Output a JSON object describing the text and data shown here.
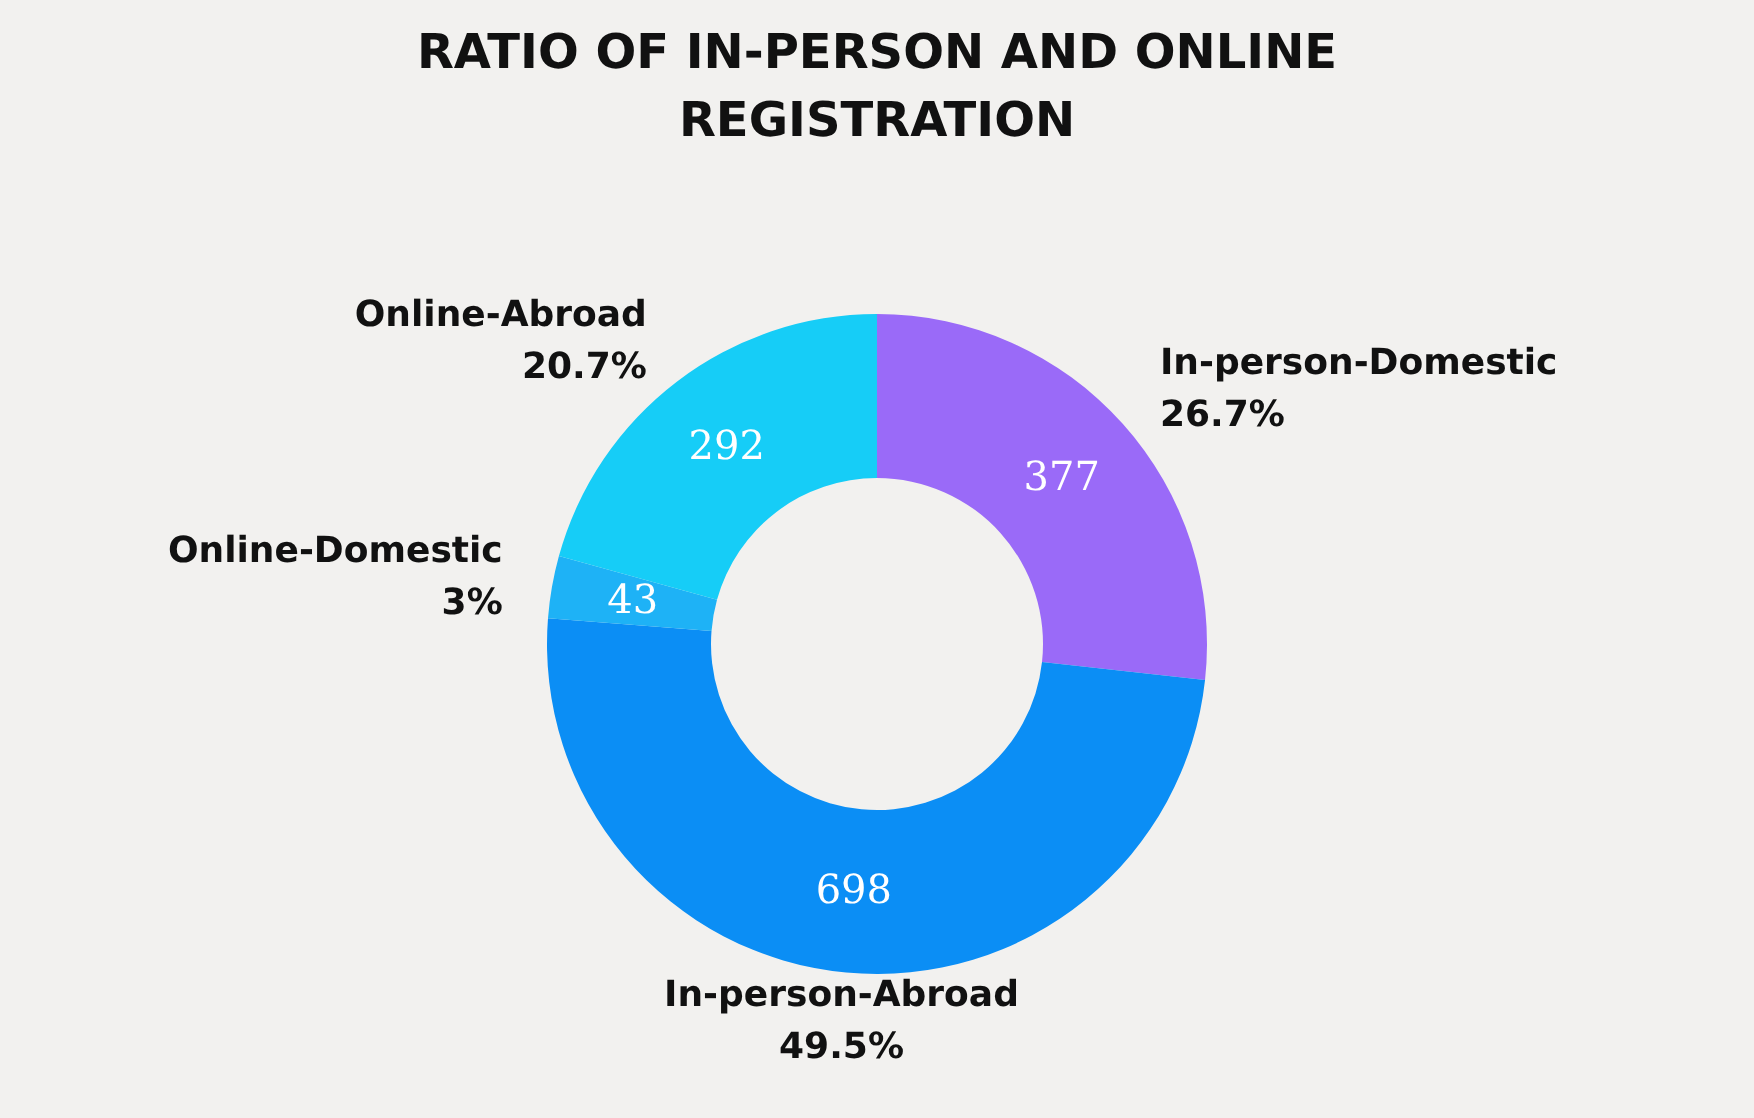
{
  "chart_data": {
    "type": "donut",
    "title": "RATIO OF IN-PERSON AND ONLINE REGISTRATION",
    "categories": [
      "In-person-Domestic",
      "In-person-Abroad",
      "Online-Domestic",
      "Online-Abroad"
    ],
    "values": [
      377,
      698,
      43,
      292
    ],
    "colors": [
      "#9a6af8",
      "#0b8ef5",
      "#1eb2f6",
      "#16cdf7"
    ],
    "data_labels": true,
    "annotations": [
      "26.7%",
      "49.5%",
      "3%",
      "20.7%"
    ]
  }
}
